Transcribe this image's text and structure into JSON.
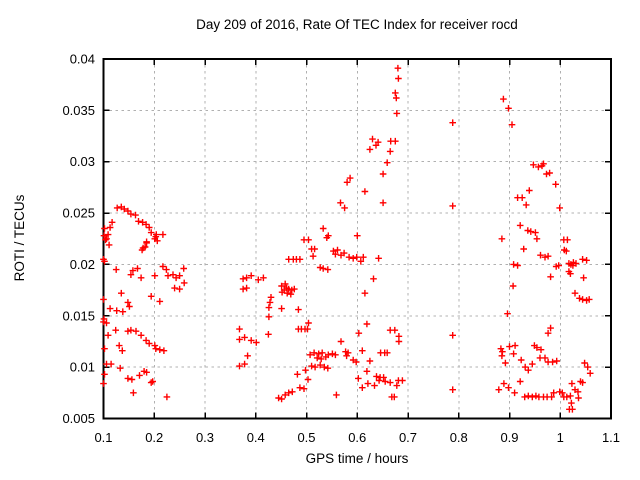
{
  "chart_data": {
    "type": "scatter",
    "title": "Day 209 of 2016, Rate Of TEC Index for receiver rocd",
    "xlabel": "GPS time / hours",
    "ylabel": "ROTI / TECUs",
    "xlim": [
      0.1,
      1.1
    ],
    "ylim": [
      0.005,
      0.04
    ],
    "grid": true,
    "legend": "none",
    "marker": "plus",
    "colors": {
      "marker": "#ff0000",
      "border": "#000000",
      "grid": "#b0b0b0",
      "text": "#000000",
      "background": "#ffffff"
    },
    "x_ticks": {
      "values": [
        0.1,
        0.2,
        0.3,
        0.4,
        0.5,
        0.6,
        0.7,
        0.8,
        0.9,
        1.0,
        1.1
      ],
      "labels": [
        "0.1",
        "0.2",
        "0.3",
        "0.4",
        "0.5",
        "0.6",
        "0.7",
        "0.8",
        "0.9",
        "1",
        "1.1"
      ]
    },
    "y_ticks": {
      "values": [
        0.005,
        0.01,
        0.015,
        0.02,
        0.025,
        0.03,
        0.035,
        0.04
      ],
      "labels": [
        "0.005",
        "0.01",
        "0.015",
        "0.02",
        "0.025",
        "0.03",
        "0.035",
        "0.04"
      ]
    },
    "series_name": "ROTI",
    "points": [
      [
        0.127,
        0.0255
      ],
      [
        0.135,
        0.0256
      ],
      [
        0.141,
        0.0254
      ],
      [
        0.148,
        0.0252
      ],
      [
        0.154,
        0.0249
      ],
      [
        0.163,
        0.0248
      ],
      [
        0.169,
        0.0242
      ],
      [
        0.177,
        0.0241
      ],
      [
        0.184,
        0.0239
      ],
      [
        0.19,
        0.0236
      ],
      [
        0.194,
        0.0231
      ],
      [
        0.117,
        0.0241
      ],
      [
        0.113,
        0.0236
      ],
      [
        0.109,
        0.0229
      ],
      [
        0.104,
        0.0224
      ],
      [
        0.111,
        0.0219
      ],
      [
        0.201,
        0.0225
      ],
      [
        0.206,
        0.0223
      ],
      [
        0.217,
        0.0229
      ],
      [
        0.204,
        0.0229
      ],
      [
        0.185,
        0.0221
      ],
      [
        0.182,
        0.0217
      ],
      [
        0.176,
        0.0214
      ],
      [
        0.101,
        0.0228
      ],
      [
        0.102,
        0.0235
      ],
      [
        0.106,
        0.0225
      ],
      [
        0.185,
        0.0222
      ],
      [
        0.178,
        0.0216
      ],
      [
        0.203,
        0.0227
      ],
      [
        0.102,
        0.0203
      ],
      [
        0.125,
        0.0195
      ],
      [
        0.158,
        0.0194
      ],
      [
        0.167,
        0.0196
      ],
      [
        0.174,
        0.0187
      ],
      [
        0.154,
        0.019
      ],
      [
        0.201,
        0.0189
      ],
      [
        0.217,
        0.0198
      ],
      [
        0.224,
        0.0195
      ],
      [
        0.227,
        0.0189
      ],
      [
        0.237,
        0.019
      ],
      [
        0.243,
        0.0187
      ],
      [
        0.25,
        0.0189
      ],
      [
        0.258,
        0.0196
      ],
      [
        0.24,
        0.0177
      ],
      [
        0.25,
        0.0176
      ],
      [
        0.259,
        0.0182
      ],
      [
        0.1,
        0.0205
      ],
      [
        0.135,
        0.0172
      ],
      [
        0.148,
        0.0163
      ],
      [
        0.151,
        0.0159
      ],
      [
        0.126,
        0.0155
      ],
      [
        0.138,
        0.0154
      ],
      [
        0.113,
        0.0157
      ],
      [
        0.194,
        0.0169
      ],
      [
        0.211,
        0.0164
      ],
      [
        0.106,
        0.0143
      ],
      [
        0.1,
        0.0166
      ],
      [
        0.124,
        0.0136
      ],
      [
        0.101,
        0.0147
      ],
      [
        0.102,
        0.0118
      ],
      [
        0.109,
        0.0131
      ],
      [
        0.154,
        0.0136
      ],
      [
        0.148,
        0.0135
      ],
      [
        0.164,
        0.0135
      ],
      [
        0.174,
        0.0131
      ],
      [
        0.184,
        0.0126
      ],
      [
        0.19,
        0.0123
      ],
      [
        0.201,
        0.0121
      ],
      [
        0.131,
        0.0121
      ],
      [
        0.137,
        0.0116
      ],
      [
        0.1,
        0.0144
      ],
      [
        0.106,
        0.0103
      ],
      [
        0.115,
        0.0103
      ],
      [
        0.133,
        0.0099
      ],
      [
        0.148,
        0.0089
      ],
      [
        0.156,
        0.0088
      ],
      [
        0.171,
        0.0092
      ],
      [
        0.18,
        0.0096
      ],
      [
        0.185,
        0.0095
      ],
      [
        0.197,
        0.0086
      ],
      [
        0.194,
        0.0085
      ],
      [
        0.159,
        0.0075
      ],
      [
        0.225,
        0.0071
      ],
      [
        0.203,
        0.0118
      ],
      [
        0.211,
        0.0117
      ],
      [
        0.219,
        0.0116
      ],
      [
        0.102,
        0.0093
      ],
      [
        0.1,
        0.0084
      ],
      [
        0.375,
        0.0186
      ],
      [
        0.382,
        0.0187
      ],
      [
        0.391,
        0.0189
      ],
      [
        0.375,
        0.0176
      ],
      [
        0.382,
        0.0177
      ],
      [
        0.405,
        0.0185
      ],
      [
        0.415,
        0.0187
      ],
      [
        0.368,
        0.0137
      ],
      [
        0.368,
        0.0127
      ],
      [
        0.378,
        0.0129
      ],
      [
        0.391,
        0.0126
      ],
      [
        0.401,
        0.0124
      ],
      [
        0.384,
        0.0111
      ],
      [
        0.368,
        0.0101
      ],
      [
        0.378,
        0.0103
      ],
      [
        0.495,
        0.0224
      ],
      [
        0.504,
        0.0224
      ],
      [
        0.51,
        0.0215
      ],
      [
        0.516,
        0.0215
      ],
      [
        0.54,
        0.0226
      ],
      [
        0.513,
        0.0208
      ],
      [
        0.553,
        0.0213
      ],
      [
        0.561,
        0.0214
      ],
      [
        0.557,
        0.021
      ],
      [
        0.568,
        0.0209
      ],
      [
        0.574,
        0.0211
      ],
      [
        0.584,
        0.0207
      ],
      [
        0.592,
        0.0206
      ],
      [
        0.599,
        0.0207
      ],
      [
        0.465,
        0.0205
      ],
      [
        0.474,
        0.0205
      ],
      [
        0.48,
        0.0205
      ],
      [
        0.487,
        0.0205
      ],
      [
        0.527,
        0.0197
      ],
      [
        0.533,
        0.0196
      ],
      [
        0.542,
        0.0195
      ],
      [
        0.451,
        0.0179
      ],
      [
        0.458,
        0.0181
      ],
      [
        0.461,
        0.0177
      ],
      [
        0.456,
        0.0175
      ],
      [
        0.465,
        0.0176
      ],
      [
        0.471,
        0.0175
      ],
      [
        0.476,
        0.0176
      ],
      [
        0.452,
        0.0173
      ],
      [
        0.462,
        0.0172
      ],
      [
        0.469,
        0.0171
      ],
      [
        0.43,
        0.0168
      ],
      [
        0.428,
        0.0163
      ],
      [
        0.426,
        0.0158
      ],
      [
        0.451,
        0.0157
      ],
      [
        0.484,
        0.0156
      ],
      [
        0.426,
        0.0149
      ],
      [
        0.504,
        0.0143
      ],
      [
        0.484,
        0.0137
      ],
      [
        0.49,
        0.0137
      ],
      [
        0.497,
        0.0137
      ],
      [
        0.502,
        0.0137
      ],
      [
        0.425,
        0.0132
      ],
      [
        0.68,
        0.0391
      ],
      [
        0.681,
        0.0381
      ],
      [
        0.675,
        0.0367
      ],
      [
        0.677,
        0.0362
      ],
      [
        0.678,
        0.0347
      ],
      [
        0.63,
        0.0322
      ],
      [
        0.641,
        0.0319
      ],
      [
        0.666,
        0.032
      ],
      [
        0.675,
        0.032
      ],
      [
        0.625,
        0.0312
      ],
      [
        0.637,
        0.0316
      ],
      [
        0.665,
        0.031
      ],
      [
        0.659,
        0.0299
      ],
      [
        0.651,
        0.0288
      ],
      [
        0.586,
        0.0284
      ],
      [
        0.58,
        0.028
      ],
      [
        0.615,
        0.0271
      ],
      [
        0.567,
        0.026
      ],
      [
        0.575,
        0.0255
      ],
      [
        0.651,
        0.026
      ],
      [
        0.533,
        0.0235
      ],
      [
        0.543,
        0.0228
      ],
      [
        0.6,
        0.0228
      ],
      [
        0.612,
        0.0207
      ],
      [
        0.607,
        0.0203
      ],
      [
        0.642,
        0.0206
      ],
      [
        0.632,
        0.0186
      ],
      [
        0.615,
        0.0172
      ],
      [
        0.619,
        0.0142
      ],
      [
        0.603,
        0.0133
      ],
      [
        0.665,
        0.0136
      ],
      [
        0.674,
        0.0136
      ],
      [
        0.682,
        0.013
      ],
      [
        0.682,
        0.0125
      ],
      [
        0.61,
        0.0116
      ],
      [
        0.646,
        0.0114
      ],
      [
        0.654,
        0.0114
      ],
      [
        0.659,
        0.0114
      ],
      [
        0.625,
        0.0106
      ],
      [
        0.619,
        0.0096
      ],
      [
        0.638,
        0.0091
      ],
      [
        0.645,
        0.009
      ],
      [
        0.652,
        0.009
      ],
      [
        0.643,
        0.0087
      ],
      [
        0.655,
        0.0086
      ],
      [
        0.634,
        0.0082
      ],
      [
        0.621,
        0.0084
      ],
      [
        0.61,
        0.008
      ],
      [
        0.665,
        0.0085
      ],
      [
        0.681,
        0.0087
      ],
      [
        0.689,
        0.0087
      ],
      [
        0.678,
        0.0082
      ],
      [
        0.668,
        0.0071
      ],
      [
        0.673,
        0.0071
      ],
      [
        0.602,
        0.0089
      ],
      [
        0.498,
        0.0097
      ],
      [
        0.507,
        0.0112
      ],
      [
        0.515,
        0.0114
      ],
      [
        0.524,
        0.0113
      ],
      [
        0.531,
        0.0114
      ],
      [
        0.521,
        0.0109
      ],
      [
        0.529,
        0.0108
      ],
      [
        0.538,
        0.011
      ],
      [
        0.543,
        0.0112
      ],
      [
        0.551,
        0.0113
      ],
      [
        0.557,
        0.0112
      ],
      [
        0.568,
        0.0125
      ],
      [
        0.577,
        0.0115
      ],
      [
        0.582,
        0.0114
      ],
      [
        0.579,
        0.0111
      ],
      [
        0.592,
        0.0107
      ],
      [
        0.598,
        0.0105
      ],
      [
        0.51,
        0.0101
      ],
      [
        0.517,
        0.01
      ],
      [
        0.527,
        0.0102
      ],
      [
        0.535,
        0.01
      ],
      [
        0.542,
        0.0099
      ],
      [
        0.503,
        0.0088
      ],
      [
        0.487,
        0.008
      ],
      [
        0.495,
        0.0079
      ],
      [
        0.465,
        0.0075
      ],
      [
        0.472,
        0.0076
      ],
      [
        0.458,
        0.0073
      ],
      [
        0.445,
        0.007
      ],
      [
        0.451,
        0.0069
      ],
      [
        0.559,
        0.0073
      ],
      [
        0.482,
        0.0093
      ],
      [
        0.788,
        0.0338
      ],
      [
        0.788,
        0.0257
      ],
      [
        0.788,
        0.0131
      ],
      [
        0.788,
        0.0078
      ],
      [
        0.888,
        0.0361
      ],
      [
        0.898,
        0.0352
      ],
      [
        0.905,
        0.0336
      ],
      [
        0.947,
        0.0297
      ],
      [
        0.957,
        0.0295
      ],
      [
        0.964,
        0.0296
      ],
      [
        0.967,
        0.0298
      ],
      [
        0.973,
        0.0288
      ],
      [
        0.979,
        0.0289
      ],
      [
        0.991,
        0.0278
      ],
      [
        0.939,
        0.0272
      ],
      [
        0.916,
        0.0265
      ],
      [
        0.925,
        0.0265
      ],
      [
        0.933,
        0.0258
      ],
      [
        0.999,
        0.0255
      ],
      [
        0.921,
        0.0238
      ],
      [
        0.936,
        0.0233
      ],
      [
        0.942,
        0.0232
      ],
      [
        0.951,
        0.0231
      ],
      [
        0.954,
        0.0225
      ],
      [
        1.007,
        0.0224
      ],
      [
        0.885,
        0.0225
      ],
      [
        0.928,
        0.0215
      ],
      [
        0.961,
        0.0209
      ],
      [
        0.97,
        0.0207
      ],
      [
        0.976,
        0.0208
      ],
      [
        1.014,
        0.0224
      ],
      [
        1.008,
        0.0214
      ],
      [
        1.012,
        0.0213
      ],
      [
        0.997,
        0.0199
      ],
      [
        0.992,
        0.0198
      ],
      [
        1.017,
        0.0201
      ],
      [
        1.021,
        0.02
      ],
      [
        1.026,
        0.0202
      ],
      [
        1.031,
        0.0201
      ],
      [
        1.025,
        0.0199
      ],
      [
        1.044,
        0.0205
      ],
      [
        1.052,
        0.0204
      ],
      [
        0.981,
        0.0188
      ],
      [
        1.046,
        0.0187
      ],
      [
        1.017,
        0.0193
      ],
      [
        1.02,
        0.0191
      ],
      [
        0.908,
        0.02
      ],
      [
        0.916,
        0.0199
      ],
      [
        0.907,
        0.0179
      ],
      [
        1.029,
        0.0172
      ],
      [
        1.038,
        0.0167
      ],
      [
        1.044,
        0.0166
      ],
      [
        1.052,
        0.0165
      ],
      [
        1.057,
        0.0166
      ],
      [
        0.896,
        0.0152
      ],
      [
        0.981,
        0.0138
      ],
      [
        0.885,
        0.0111
      ],
      [
        0.9,
        0.012
      ],
      [
        0.908,
        0.0113
      ],
      [
        0.892,
        0.0104
      ],
      [
        0.923,
        0.0107
      ],
      [
        0.931,
        0.01
      ],
      [
        0.937,
        0.0097
      ],
      [
        0.945,
        0.0103
      ],
      [
        0.954,
        0.0119
      ],
      [
        0.96,
        0.0109
      ],
      [
        0.97,
        0.0109
      ],
      [
        0.976,
        0.0105
      ],
      [
        0.985,
        0.0105
      ],
      [
        0.993,
        0.0106
      ],
      [
        0.976,
        0.0133
      ],
      [
        0.889,
        0.0084
      ],
      [
        0.898,
        0.008
      ],
      [
        0.879,
        0.0078
      ],
      [
        0.921,
        0.0086
      ],
      [
        0.91,
        0.0075
      ],
      [
        0.93,
        0.0071
      ],
      [
        0.937,
        0.0072
      ],
      [
        0.945,
        0.0071
      ],
      [
        0.952,
        0.0072
      ],
      [
        0.958,
        0.0071
      ],
      [
        0.967,
        0.0071
      ],
      [
        0.974,
        0.0071
      ],
      [
        0.983,
        0.0071
      ],
      [
        0.987,
        0.0075
      ],
      [
        0.999,
        0.0076
      ],
      [
        1.004,
        0.0075
      ],
      [
        1.007,
        0.0071
      ],
      [
        1.013,
        0.0071
      ],
      [
        1.02,
        0.0072
      ],
      [
        1.029,
        0.0078
      ],
      [
        1.035,
        0.0076
      ],
      [
        1.023,
        0.0084
      ],
      [
        1.04,
        0.0086
      ],
      [
        1.022,
        0.0065
      ],
      [
        1.024,
        0.0059
      ],
      [
        1.048,
        0.0104
      ],
      [
        1.054,
        0.01
      ],
      [
        1.059,
        0.0094
      ],
      [
        1.044,
        0.0085
      ],
      [
        1.018,
        0.0059
      ],
      [
        1.036,
        0.007
      ],
      [
        0.883,
        0.0118
      ],
      [
        0.886,
        0.0115
      ],
      [
        0.911,
        0.0121
      ],
      [
        0.949,
        0.0121
      ],
      [
        0.962,
        0.0117
      ]
    ]
  }
}
